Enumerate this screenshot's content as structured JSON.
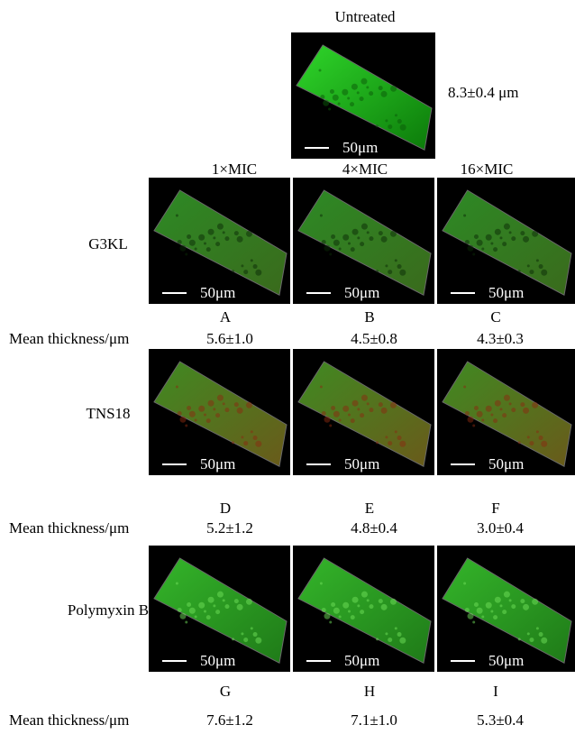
{
  "header": {
    "title": "Untreated",
    "thickness": "8.3±0.4 μm"
  },
  "concentrations": [
    "1×MIC",
    "4×MIC",
    "16×MIC"
  ],
  "scale_bar": "50μm",
  "thickness_label": "Mean thickness/μm",
  "rows": [
    {
      "name": "G3KL",
      "panels": [
        {
          "letter": "A",
          "thickness": "5.6±1.0"
        },
        {
          "letter": "B",
          "thickness": "4.5±0.8"
        },
        {
          "letter": "C",
          "thickness": "4.3±0.3"
        }
      ]
    },
    {
      "name": "TNS18",
      "panels": [
        {
          "letter": "D",
          "thickness": "5.2±1.2"
        },
        {
          "letter": "E",
          "thickness": "4.8±0.4"
        },
        {
          "letter": "F",
          "thickness": "3.0±0.4"
        }
      ]
    },
    {
      "name": "Polymyxin B",
      "panels": [
        {
          "letter": "G",
          "thickness": "7.6±1.2"
        },
        {
          "letter": "H",
          "thickness": "7.1±1.0"
        },
        {
          "letter": "I",
          "thickness": "5.3±0.4"
        }
      ]
    }
  ]
}
